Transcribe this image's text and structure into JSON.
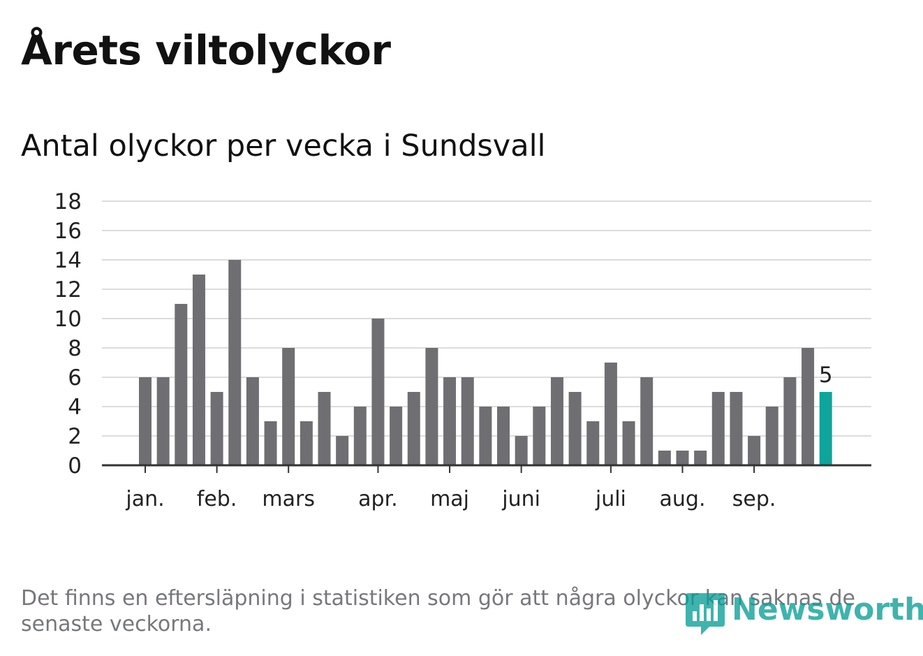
{
  "colors": {
    "bar": "#6e6e73",
    "highlight": "#0ea59b",
    "grid": "#dcdcdc",
    "axis": "#333333",
    "brand": "#0a9e97"
  },
  "footnote": "Det finns en eftersläpning i statistiken som gör att några olyckor kan saknas de senaste veckorna.",
  "logo": {
    "text": "Newsworthy",
    "icon": "bar-chart-pin-icon"
  },
  "chart_data": {
    "type": "bar",
    "title": "Årets viltolyckor",
    "subtitle": "Antal olyckor per vecka i Sundsvall",
    "xlabel": "",
    "ylabel": "",
    "ylim": [
      0,
      18
    ],
    "yticks": [
      0,
      2,
      4,
      6,
      8,
      10,
      12,
      14,
      16,
      18
    ],
    "grid": true,
    "values": [
      6,
      6,
      11,
      13,
      5,
      14,
      6,
      3,
      8,
      3,
      5,
      2,
      4,
      10,
      4,
      5,
      8,
      6,
      6,
      4,
      4,
      2,
      4,
      6,
      5,
      3,
      7,
      3,
      6,
      1,
      1,
      1,
      5,
      5,
      2,
      4,
      6,
      8,
      5
    ],
    "highlight_last": true,
    "last_value_label": "5",
    "month_ticks": [
      {
        "label": "jan.",
        "week_index": 0
      },
      {
        "label": "feb.",
        "week_index": 4
      },
      {
        "label": "mars",
        "week_index": 8
      },
      {
        "label": "apr.",
        "week_index": 13
      },
      {
        "label": "maj",
        "week_index": 17
      },
      {
        "label": "juni",
        "week_index": 21
      },
      {
        "label": "juli",
        "week_index": 26
      },
      {
        "label": "aug.",
        "week_index": 30
      },
      {
        "label": "sep.",
        "week_index": 34
      }
    ]
  }
}
